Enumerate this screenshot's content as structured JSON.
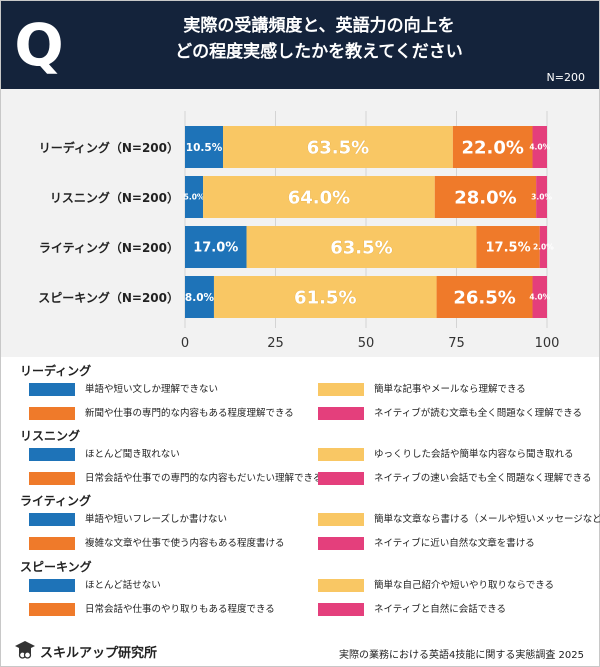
{
  "header": {
    "q_mark": "Q",
    "title_line1": "実際の受講頻度と、英語力の向上を",
    "title_line2": "どの程度実感したかを教えてください",
    "n_note": "N=200"
  },
  "colors": {
    "blue": "#1e73b8",
    "yellow": "#f9c764",
    "orange": "#ef7a2a",
    "pink": "#e43f7c"
  },
  "chart_data": {
    "type": "bar",
    "orientation": "horizontal",
    "stacked": true,
    "categories": [
      "リーディング（N=200）",
      "リスニング（N=200）",
      "ライティング（N=200）",
      "スピーキング（N=200）"
    ],
    "series": [
      {
        "name": "level1",
        "color": "#1e73b8",
        "values": [
          10.5,
          5.0,
          17.0,
          8.0
        ],
        "labels": [
          "10.5%",
          "5.0%",
          "17.0%",
          "8.0%"
        ]
      },
      {
        "name": "level2",
        "color": "#f9c764",
        "values": [
          63.5,
          64.0,
          63.5,
          61.5
        ],
        "labels": [
          "63.5%",
          "64.0%",
          "63.5%",
          "61.5%"
        ]
      },
      {
        "name": "level3",
        "color": "#ef7a2a",
        "values": [
          22.0,
          28.0,
          17.5,
          26.5
        ],
        "labels": [
          "22.0%",
          "28.0%",
          "17.5%",
          "26.5%"
        ]
      },
      {
        "name": "level4",
        "color": "#e43f7c",
        "values": [
          4.0,
          3.0,
          2.0,
          4.0
        ],
        "labels": [
          "4.0%",
          "3.0%",
          "2.0%",
          "4.0%"
        ]
      }
    ],
    "xticks": [
      "0",
      "25",
      "50",
      "75",
      "100"
    ],
    "xlim": [
      0,
      100
    ],
    "grid": true
  },
  "legend": [
    {
      "title": "リーディング",
      "items": [
        {
          "label": "単語や短い文しか理解できない",
          "color": "#1e73b8"
        },
        {
          "label": "簡単な記事やメールなら理解できる",
          "color": "#f9c764"
        },
        {
          "label": "新聞や仕事の専門的な内容もある程度理解できる",
          "color": "#ef7a2a"
        },
        {
          "label": "ネイティブが読む文章も全く問題なく理解できる",
          "color": "#e43f7c"
        }
      ]
    },
    {
      "title": "リスニング",
      "items": [
        {
          "label": "ほとんど聞き取れない",
          "color": "#1e73b8"
        },
        {
          "label": "ゆっくりした会話や簡単な内容なら聞き取れる",
          "color": "#f9c764"
        },
        {
          "label": "日常会話や仕事での専門的な内容もだいたい理解できる",
          "color": "#ef7a2a"
        },
        {
          "label": "ネイティブの速い会話でも全く問題なく理解できる",
          "color": "#e43f7c"
        }
      ]
    },
    {
      "title": "ライティング",
      "items": [
        {
          "label": "単語や短いフレーズしか書けない",
          "color": "#1e73b8"
        },
        {
          "label": "簡単な文章なら書ける（メールや短いメッセージなど）",
          "color": "#f9c764"
        },
        {
          "label": "複雑な文章や仕事で使う内容もある程度書ける",
          "color": "#ef7a2a"
        },
        {
          "label": "ネイティブに近い自然な文章を書ける",
          "color": "#e43f7c"
        }
      ]
    },
    {
      "title": "スピーキング",
      "items": [
        {
          "label": "ほとんど話せない",
          "color": "#1e73b8"
        },
        {
          "label": "簡単な自己紹介や短いやり取りならできる",
          "color": "#f9c764"
        },
        {
          "label": "日常会話や仕事のやり取りもある程度できる",
          "color": "#ef7a2a"
        },
        {
          "label": "ネイティブと自然に会話できる",
          "color": "#e43f7c"
        }
      ]
    }
  ],
  "footer": {
    "brand": "スキルアップ研究所",
    "source": "実際の業務における英語4技能に関する実態調査 2025"
  }
}
